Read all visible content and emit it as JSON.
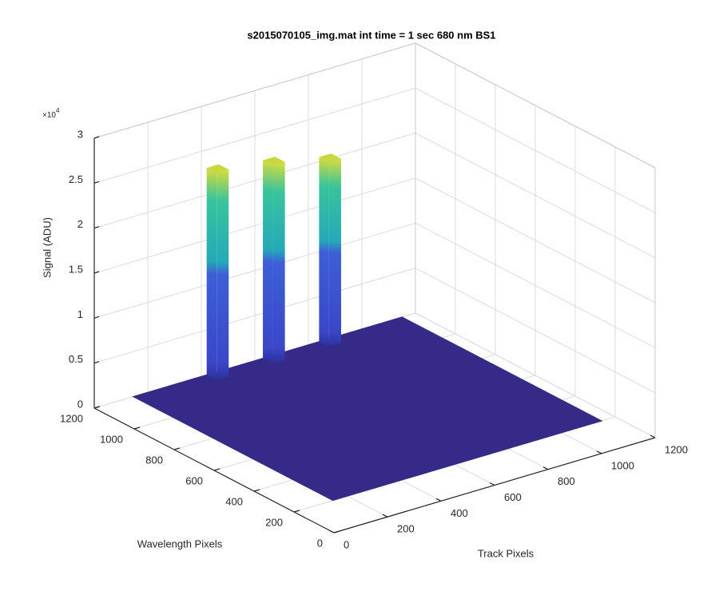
{
  "chart_data": {
    "type": "surface",
    "title": "s2015070105_img.mat int time = 1 sec  680 nm BS1",
    "xlabel": "Track Pixels",
    "ylabel": "Wavelength Pixels",
    "zlabel": "Signal (ADU)",
    "z_multiplier": {
      "base": "×10",
      "exponent": "4"
    },
    "xlim": [
      0,
      1200
    ],
    "xticks": [
      0,
      200,
      400,
      600,
      800,
      1000,
      1200
    ],
    "ylim": [
      0,
      1200
    ],
    "yticks": [
      0,
      200,
      400,
      600,
      800,
      1000,
      1200
    ],
    "zlim": [
      0,
      30000
    ],
    "zticks": [
      {
        "value": 0,
        "label": "0"
      },
      {
        "value": 5000,
        "label": "0.5"
      },
      {
        "value": 10000,
        "label": "1"
      },
      {
        "value": 15000,
        "label": "1.5"
      },
      {
        "value": 20000,
        "label": "2"
      },
      {
        "value": 25000,
        "label": "2.5"
      },
      {
        "value": 30000,
        "label": "3"
      }
    ],
    "grid": true,
    "color": "#352a87",
    "surface": {
      "x_range": [
        145,
        1150
      ],
      "y_range": [
        200,
        1200
      ],
      "base": 0,
      "peaks": [
        {
          "x": [
            420,
            465
          ],
          "y": [
            1150,
            1200
          ],
          "value": 23000
        },
        {
          "x": [
            630,
            675
          ],
          "y": [
            1150,
            1200
          ],
          "value": 22000
        },
        {
          "x": [
            840,
            885
          ],
          "y": [
            1150,
            1200
          ],
          "value": 20500
        }
      ]
    }
  }
}
